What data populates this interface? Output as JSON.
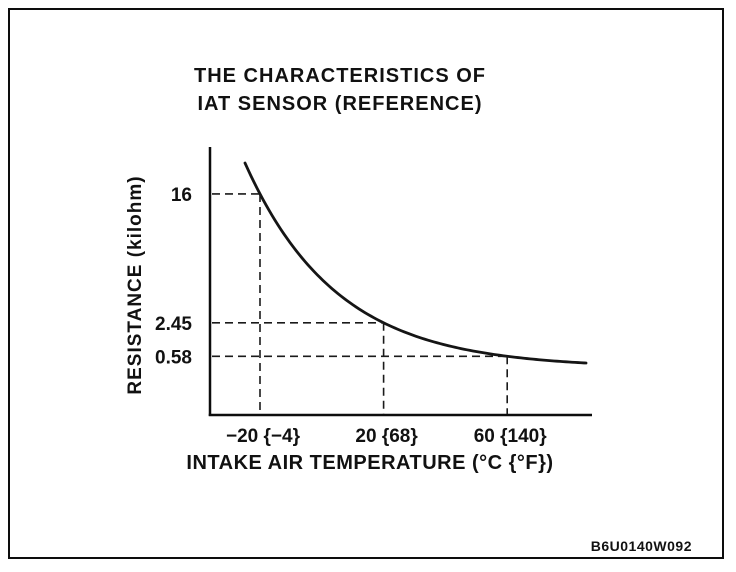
{
  "figure_code": "B6U0140W092",
  "chart_data": {
    "type": "line",
    "title_lines": [
      "THE CHARACTERISTICS OF",
      "IAT SENSOR (REFERENCE)"
    ],
    "xlabel": "INTAKE AIR TEMPERATURE (°C {°F})",
    "ylabel": "RESISTANCE (kilohm)",
    "x_unit": "°C {°F}",
    "y_unit": "kilohm",
    "x_ticks": [
      {
        "value": -20,
        "label": "−20 {−4}"
      },
      {
        "value": 20,
        "label": "20 {68}"
      },
      {
        "value": 60,
        "label": "60 {140}"
      }
    ],
    "y_ticks": [
      {
        "value": 16,
        "label": "16"
      },
      {
        "value": 2.45,
        "label": "2.45"
      },
      {
        "value": 0.58,
        "label": "0.58"
      }
    ],
    "reference_points": [
      {
        "temperature_c": -20,
        "temperature_f": -4,
        "resistance_kilohm": 16
      },
      {
        "temperature_c": 20,
        "temperature_f": 68,
        "resistance_kilohm": 2.45
      },
      {
        "temperature_c": 60,
        "temperature_f": 140,
        "resistance_kilohm": 0.58
      }
    ],
    "curve_description": "monotonically decreasing exponential-style NTC thermistor curve with dashed guide lines at each reference point",
    "grid": false,
    "legend": false,
    "line_color": "#151515"
  }
}
